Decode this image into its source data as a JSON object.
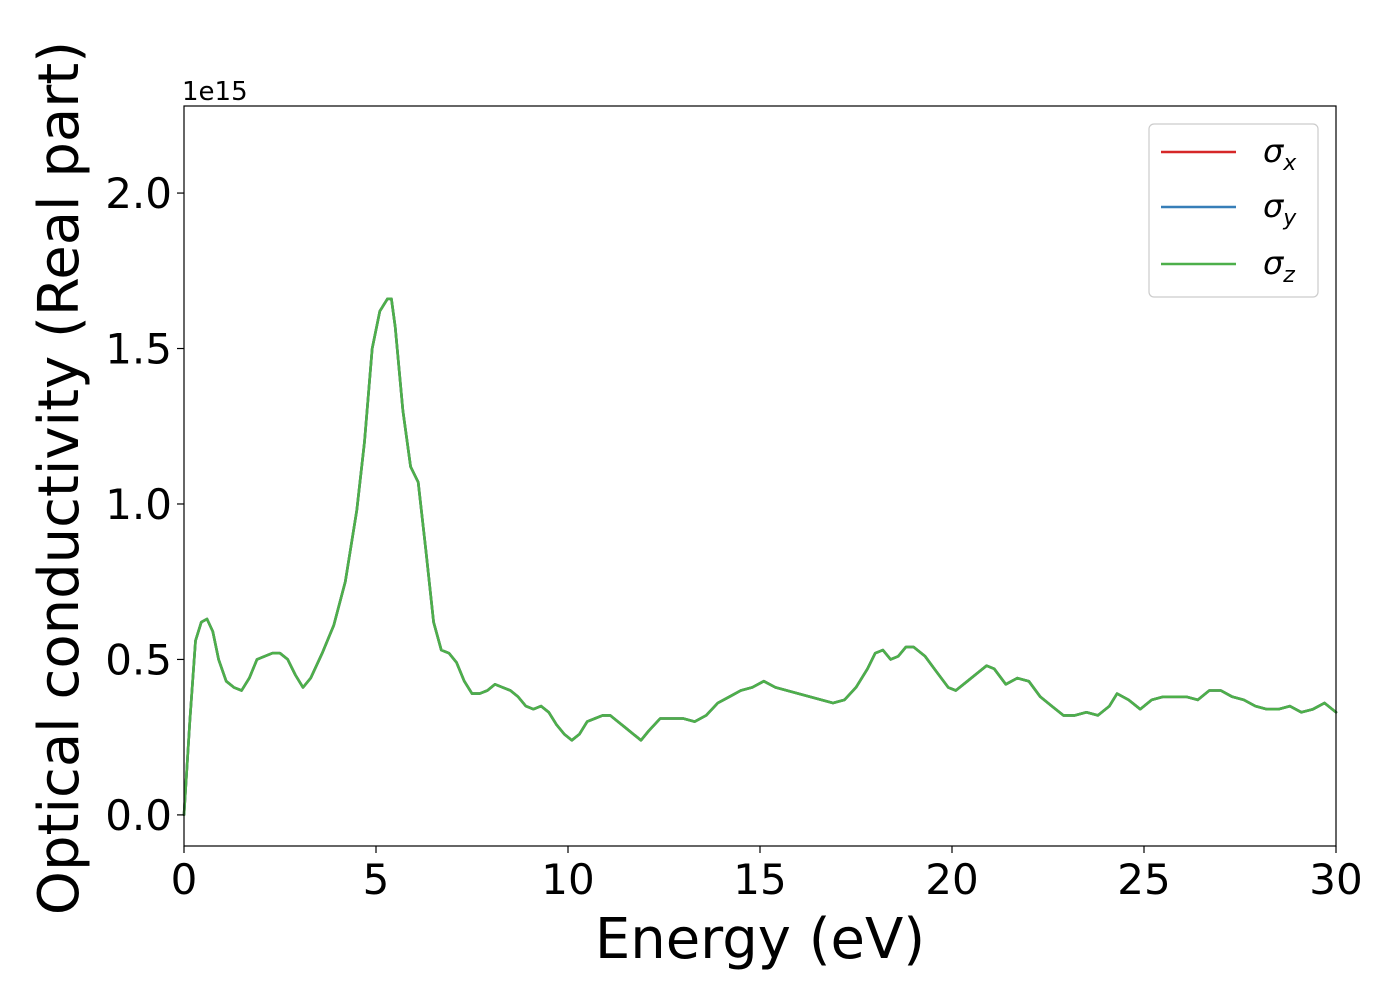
{
  "chart_data": {
    "type": "line",
    "title": "",
    "xlabel": "Energy (eV)",
    "ylabel": "Optical conductivity (Real part)",
    "offset_text": "1e15",
    "xlim": [
      0,
      30
    ],
    "ylim": [
      -0.1,
      2.28
    ],
    "xticks": [
      0,
      5,
      10,
      15,
      20,
      25,
      30
    ],
    "xtick_labels": [
      "0",
      "5",
      "10",
      "15",
      "20",
      "25",
      "30"
    ],
    "yticks": [
      0.0,
      0.5,
      1.0,
      1.5,
      2.0
    ],
    "ytick_labels": [
      "0.0",
      "0.5",
      "1.0",
      "1.5",
      "2.0"
    ],
    "grid": false,
    "legend_position": "top-right",
    "x": [
      0.0,
      0.15,
      0.3,
      0.45,
      0.6,
      0.75,
      0.9,
      1.1,
      1.3,
      1.5,
      1.7,
      1.9,
      2.1,
      2.3,
      2.5,
      2.7,
      2.9,
      3.1,
      3.3,
      3.6,
      3.9,
      4.2,
      4.5,
      4.7,
      4.9,
      5.1,
      5.3,
      5.4,
      5.5,
      5.7,
      5.9,
      6.1,
      6.3,
      6.5,
      6.7,
      6.9,
      7.1,
      7.3,
      7.5,
      7.7,
      7.9,
      8.1,
      8.3,
      8.5,
      8.7,
      8.9,
      9.1,
      9.3,
      9.5,
      9.7,
      9.9,
      10.1,
      10.3,
      10.5,
      10.7,
      10.9,
      11.1,
      11.3,
      11.5,
      11.7,
      11.9,
      12.1,
      12.4,
      12.7,
      13.0,
      13.3,
      13.6,
      13.9,
      14.2,
      14.5,
      14.8,
      15.1,
      15.4,
      15.7,
      16.0,
      16.3,
      16.6,
      16.9,
      17.2,
      17.5,
      17.8,
      18.0,
      18.2,
      18.4,
      18.6,
      18.8,
      19.0,
      19.3,
      19.6,
      19.9,
      20.1,
      20.4,
      20.7,
      20.9,
      21.1,
      21.4,
      21.7,
      22.0,
      22.3,
      22.6,
      22.9,
      23.2,
      23.5,
      23.8,
      24.1,
      24.3,
      24.6,
      24.9,
      25.2,
      25.5,
      25.8,
      26.1,
      26.4,
      26.7,
      27.0,
      27.3,
      27.6,
      27.9,
      28.2,
      28.5,
      28.8,
      29.1,
      29.4,
      29.7,
      30.0
    ],
    "series": [
      {
        "name": "σx",
        "label_base": "σ",
        "label_sub": "x",
        "color": "#d62728",
        "values": [
          0.0,
          0.3,
          0.56,
          0.62,
          0.63,
          0.59,
          0.5,
          0.43,
          0.41,
          0.4,
          0.44,
          0.5,
          0.51,
          0.52,
          0.52,
          0.5,
          0.45,
          0.41,
          0.44,
          0.52,
          0.61,
          0.75,
          0.98,
          1.2,
          1.5,
          1.62,
          1.66,
          1.66,
          1.57,
          1.3,
          1.12,
          1.07,
          0.85,
          0.62,
          0.53,
          0.52,
          0.49,
          0.43,
          0.39,
          0.39,
          0.4,
          0.42,
          0.41,
          0.4,
          0.38,
          0.35,
          0.34,
          0.35,
          0.33,
          0.29,
          0.26,
          0.24,
          0.26,
          0.3,
          0.31,
          0.32,
          0.32,
          0.3,
          0.28,
          0.26,
          0.24,
          0.27,
          0.31,
          0.31,
          0.31,
          0.3,
          0.32,
          0.36,
          0.38,
          0.4,
          0.41,
          0.43,
          0.41,
          0.4,
          0.39,
          0.38,
          0.37,
          0.36,
          0.37,
          0.41,
          0.47,
          0.52,
          0.53,
          0.5,
          0.51,
          0.54,
          0.54,
          0.51,
          0.46,
          0.41,
          0.4,
          0.43,
          0.46,
          0.48,
          0.47,
          0.42,
          0.44,
          0.43,
          0.38,
          0.35,
          0.32,
          0.32,
          0.33,
          0.32,
          0.35,
          0.39,
          0.37,
          0.34,
          0.37,
          0.38,
          0.38,
          0.38,
          0.37,
          0.4,
          0.4,
          0.38,
          0.37,
          0.35,
          0.34,
          0.34,
          0.35,
          0.33,
          0.34,
          0.36,
          0.33
        ]
      },
      {
        "name": "σy",
        "label_base": "σ",
        "label_sub": "y",
        "color": "#377eb8",
        "values": [
          0.0,
          0.3,
          0.56,
          0.62,
          0.63,
          0.59,
          0.5,
          0.43,
          0.41,
          0.4,
          0.44,
          0.5,
          0.51,
          0.52,
          0.52,
          0.5,
          0.45,
          0.41,
          0.44,
          0.52,
          0.61,
          0.75,
          0.98,
          1.2,
          1.5,
          1.62,
          1.66,
          1.66,
          1.57,
          1.3,
          1.12,
          1.07,
          0.85,
          0.62,
          0.53,
          0.52,
          0.49,
          0.43,
          0.39,
          0.39,
          0.4,
          0.42,
          0.41,
          0.4,
          0.38,
          0.35,
          0.34,
          0.35,
          0.33,
          0.29,
          0.26,
          0.24,
          0.26,
          0.3,
          0.31,
          0.32,
          0.32,
          0.3,
          0.28,
          0.26,
          0.24,
          0.27,
          0.31,
          0.31,
          0.31,
          0.3,
          0.32,
          0.36,
          0.38,
          0.4,
          0.41,
          0.43,
          0.41,
          0.4,
          0.39,
          0.38,
          0.37,
          0.36,
          0.37,
          0.41,
          0.47,
          0.52,
          0.53,
          0.5,
          0.51,
          0.54,
          0.54,
          0.51,
          0.46,
          0.41,
          0.4,
          0.43,
          0.46,
          0.48,
          0.47,
          0.42,
          0.44,
          0.43,
          0.38,
          0.35,
          0.32,
          0.32,
          0.33,
          0.32,
          0.35,
          0.39,
          0.37,
          0.34,
          0.37,
          0.38,
          0.38,
          0.38,
          0.37,
          0.4,
          0.4,
          0.38,
          0.37,
          0.35,
          0.34,
          0.34,
          0.35,
          0.33,
          0.34,
          0.36,
          0.33
        ]
      },
      {
        "name": "σz",
        "label_base": "σ",
        "label_sub": "z",
        "color": "#4daf4a",
        "values": [
          0.0,
          0.3,
          0.56,
          0.62,
          0.63,
          0.59,
          0.5,
          0.43,
          0.41,
          0.4,
          0.44,
          0.5,
          0.51,
          0.52,
          0.52,
          0.5,
          0.45,
          0.41,
          0.44,
          0.52,
          0.61,
          0.75,
          0.98,
          1.2,
          1.5,
          1.62,
          1.66,
          1.66,
          1.57,
          1.3,
          1.12,
          1.07,
          0.85,
          0.62,
          0.53,
          0.52,
          0.49,
          0.43,
          0.39,
          0.39,
          0.4,
          0.42,
          0.41,
          0.4,
          0.38,
          0.35,
          0.34,
          0.35,
          0.33,
          0.29,
          0.26,
          0.24,
          0.26,
          0.3,
          0.31,
          0.32,
          0.32,
          0.3,
          0.28,
          0.26,
          0.24,
          0.27,
          0.31,
          0.31,
          0.31,
          0.3,
          0.32,
          0.36,
          0.38,
          0.4,
          0.41,
          0.43,
          0.41,
          0.4,
          0.39,
          0.38,
          0.37,
          0.36,
          0.37,
          0.41,
          0.47,
          0.52,
          0.53,
          0.5,
          0.51,
          0.54,
          0.54,
          0.51,
          0.46,
          0.41,
          0.4,
          0.43,
          0.46,
          0.48,
          0.47,
          0.42,
          0.44,
          0.43,
          0.38,
          0.35,
          0.32,
          0.32,
          0.33,
          0.32,
          0.35,
          0.39,
          0.37,
          0.34,
          0.37,
          0.38,
          0.38,
          0.38,
          0.37,
          0.4,
          0.4,
          0.38,
          0.37,
          0.35,
          0.34,
          0.34,
          0.35,
          0.33,
          0.34,
          0.36,
          0.33
        ]
      }
    ]
  }
}
